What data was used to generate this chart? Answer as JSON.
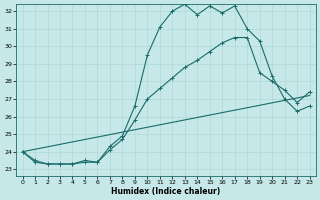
{
  "bg_color": "#c6e8e8",
  "line_color": "#1a6b6b",
  "grid_color": "#b0d8d8",
  "xlabel": "Humidex (Indice chaleur)",
  "xlim": [
    -0.5,
    23.5
  ],
  "ylim": [
    22.6,
    32.4
  ],
  "yticks": [
    23,
    24,
    25,
    26,
    27,
    28,
    29,
    30,
    31,
    32
  ],
  "xticks": [
    0,
    1,
    2,
    3,
    4,
    5,
    6,
    7,
    8,
    9,
    10,
    11,
    12,
    13,
    14,
    15,
    16,
    17,
    18,
    19,
    20,
    21,
    22,
    23
  ],
  "line1_x": [
    0,
    1,
    2,
    3,
    4,
    5,
    6,
    7,
    8,
    9,
    10,
    11,
    12,
    13,
    14,
    15,
    16,
    17,
    18,
    19,
    20,
    21,
    22,
    23
  ],
  "line1_y": [
    24.0,
    23.5,
    23.3,
    23.3,
    23.3,
    23.5,
    23.4,
    24.3,
    24.9,
    26.6,
    29.5,
    31.1,
    32.0,
    32.4,
    31.8,
    32.3,
    31.9,
    32.3,
    31.0,
    30.3,
    28.3,
    27.0,
    26.3,
    26.6
  ],
  "line2_x": [
    0,
    1,
    2,
    3,
    4,
    5,
    6,
    7,
    8,
    9,
    10,
    11,
    12,
    13,
    14,
    15,
    16,
    17,
    18,
    19,
    20,
    21,
    22,
    23
  ],
  "line2_y": [
    24.0,
    23.4,
    23.3,
    23.3,
    23.3,
    23.4,
    23.4,
    24.1,
    24.7,
    25.8,
    27.0,
    27.6,
    28.2,
    28.8,
    29.2,
    29.7,
    30.2,
    30.5,
    30.5,
    28.5,
    28.0,
    27.5,
    26.8,
    27.4
  ],
  "line3_x": [
    0,
    23
  ],
  "line3_y": [
    24.0,
    27.2
  ],
  "lw": 0.8,
  "marker_size": 2.5,
  "tick_fontsize": 4.5,
  "xlabel_fontsize": 5.5
}
